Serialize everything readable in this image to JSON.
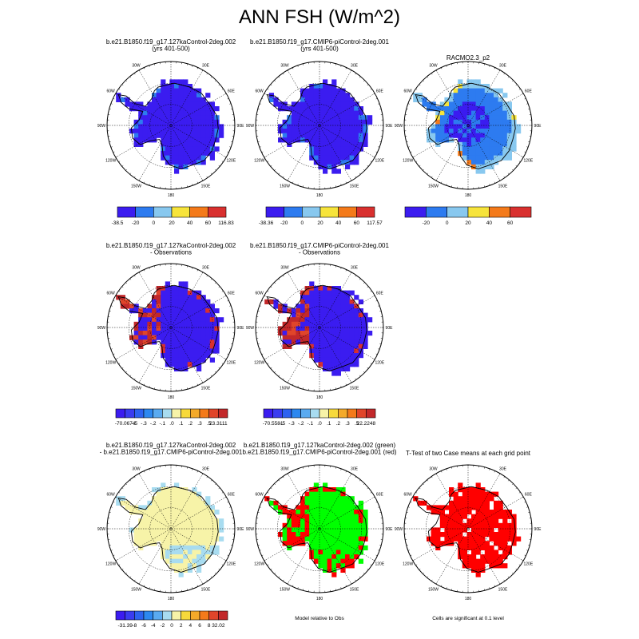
{
  "title": "ANN FSH (W/m^2)",
  "chart_data": [
    {
      "type": "heatmap",
      "kind": "polar-map",
      "title_lines": [
        "b.e21.B1850.f19_g17.127kaControl-2deg.002",
        "(yrs 401-500)"
      ],
      "lon_labels": [
        "30W",
        "30E",
        "60W",
        "60E",
        "90W",
        "90E",
        "120W",
        "120E",
        "150W",
        "150E",
        "180"
      ],
      "colorbar": {
        "ticks": [
          "-38.5",
          "-20",
          "0",
          "20",
          "40",
          "60",
          "116.83"
        ],
        "colors": [
          "#3b1cf0",
          "#2d7bf0",
          "#88c8ef",
          "#f7e43b",
          "#f47a1a",
          "#d9302f"
        ]
      },
      "field": "model-blue"
    },
    {
      "type": "heatmap",
      "kind": "polar-map",
      "title_lines": [
        "b.e21.B1850.f19_g17.CMIP6-piControl-2deg.001",
        "(yrs 401-500)"
      ],
      "lon_labels": [
        "30W",
        "30E",
        "60W",
        "60E",
        "90W",
        "90E",
        "120W",
        "120E",
        "150W",
        "150E",
        "180"
      ],
      "colorbar": {
        "ticks": [
          "-38.36",
          "-20",
          "0",
          "20",
          "40",
          "60",
          "117.57"
        ],
        "colors": [
          "#3b1cf0",
          "#2d7bf0",
          "#88c8ef",
          "#f7e43b",
          "#f47a1a",
          "#d9302f"
        ]
      },
      "field": "model-blue"
    },
    {
      "type": "heatmap",
      "kind": "polar-map",
      "title_lines": [
        "RACMO2.3_p2"
      ],
      "lon_labels": [
        "30W",
        "30E",
        "60W",
        "60E",
        "90W",
        "90E",
        "120W",
        "120E",
        "150W",
        "150E",
        "180"
      ],
      "colorbar": {
        "ticks": [
          "-20",
          "0",
          "20",
          "40",
          "60"
        ],
        "colors": [
          "#3b1cf0",
          "#2d7bf0",
          "#88c8ef",
          "#f7e43b",
          "#f47a1a",
          "#d9302f"
        ]
      },
      "field": "obs"
    },
    {
      "type": "heatmap",
      "kind": "polar-map",
      "title_lines": [
        "b.e21.B1850.f19_g17.127kaControl-2deg.002",
        "- Observations"
      ],
      "lon_labels": [
        "30W",
        "30E",
        "60W",
        "60E",
        "90W",
        "90E",
        "120W",
        "120E",
        "150W",
        "150E",
        "180"
      ],
      "colorbar": {
        "ticks": [
          "-70.0674",
          "-.5",
          "-.3",
          "-.2",
          "-.1",
          ".0",
          ".1",
          ".2",
          ".3",
          ".5",
          "23.3111"
        ],
        "colors": [
          "#3b1cf0",
          "#3a3cf0",
          "#2d62f0",
          "#2d88f0",
          "#5aaaf0",
          "#a8dcf0",
          "#f7f3a8",
          "#f7d93b",
          "#f4aa2a",
          "#f47a1a",
          "#e0452a",
          "#c2282a"
        ]
      },
      "field": "diff-obs"
    },
    {
      "type": "heatmap",
      "kind": "polar-map",
      "title_lines": [
        "b.e21.B1850.f19_g17.CMIP6-piControl-2deg.001",
        "- Observations"
      ],
      "lon_labels": [
        "30W",
        "30E",
        "60W",
        "60E",
        "90W",
        "90E",
        "120W",
        "120E",
        "150W",
        "150E",
        "180"
      ],
      "colorbar": {
        "ticks": [
          "-70.5581",
          "-.5",
          "-.3",
          "-.2",
          "-.1",
          ".0",
          ".1",
          ".2",
          ".3",
          ".5",
          "22.2248"
        ],
        "colors": [
          "#3b1cf0",
          "#3a3cf0",
          "#2d62f0",
          "#2d88f0",
          "#5aaaf0",
          "#a8dcf0",
          "#f7f3a8",
          "#f7d93b",
          "#f4aa2a",
          "#f47a1a",
          "#e0452a",
          "#c2282a"
        ]
      },
      "field": "diff-obs"
    },
    {
      "type": "heatmap",
      "kind": "polar-map",
      "title_lines": [
        "b.e21.B1850.f19_g17.127kaControl-2deg.002",
        "- b.e21.B1850.f19_g17.CMIP6-piControl-2deg.001"
      ],
      "lon_labels": [
        "30W",
        "30E",
        "60W",
        "60E",
        "90W",
        "90E",
        "120W",
        "120E",
        "150W",
        "150E",
        "180"
      ],
      "colorbar": {
        "ticks": [
          "-31.39",
          "-8",
          "-6",
          "-4",
          "-2",
          "0",
          "2",
          "4",
          "6",
          "8",
          "32.02"
        ],
        "colors": [
          "#3b1cf0",
          "#3a3cf0",
          "#2d62f0",
          "#2d88f0",
          "#5aaaf0",
          "#a8dcf0",
          "#f7f3a8",
          "#f7d93b",
          "#f4aa2a",
          "#f47a1a",
          "#e0452a",
          "#c2282a"
        ]
      },
      "field": "case-diff"
    },
    {
      "type": "heatmap",
      "kind": "polar-map",
      "title_lines": [
        "b.e21.B1850.f19_g17.127kaControl-2deg.002 (green)",
        "b.e21.B1850.f19_g17.CMIP6-piControl-2deg.001 (red)"
      ],
      "lon_labels": [
        "30W",
        "30E",
        "60W",
        "60E",
        "90W",
        "90E",
        "120W",
        "120E",
        "150W",
        "150E",
        "180"
      ],
      "caption": "Model relative to Obs",
      "field": "green-red"
    },
    {
      "type": "heatmap",
      "kind": "polar-map",
      "title_lines": [
        "T-Test of two Case means at each grid point"
      ],
      "lon_labels": [
        "30W",
        "30E",
        "60W",
        "60E",
        "90W",
        "90E",
        "120W",
        "120E",
        "150W",
        "150E",
        "180"
      ],
      "caption": "Cells are significant at 0.1 level",
      "field": "ttest"
    }
  ]
}
